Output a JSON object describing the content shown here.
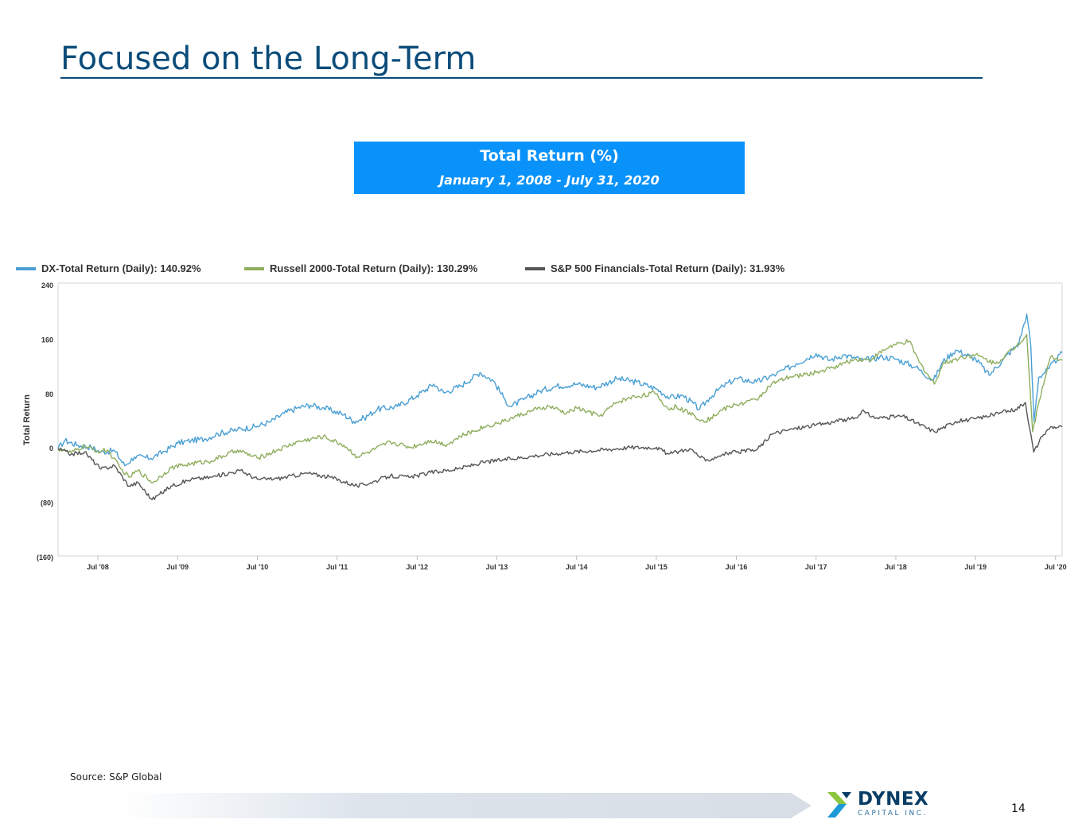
{
  "slide": {
    "title": "Focused on the Long-Term",
    "header_title": "Total Return (%)",
    "header_subtitle": "January 1, 2008 - July 31, 2020",
    "source": "Source: S&P Global",
    "page_number": "14",
    "logo_word": "DYNEX",
    "logo_sub": "CAPITAL INC."
  },
  "colors": {
    "title": "#0a4c7a",
    "header_bg": "#0a92fb",
    "dx": "#4a9fd4",
    "russell": "#8fae5e",
    "spfin": "#555555"
  },
  "chart_data": {
    "type": "line",
    "title": "",
    "xlabel": "",
    "ylabel": "Total Return",
    "xlim": [
      "2008-01-01",
      "2020-07-31"
    ],
    "ylim": [
      -160,
      240
    ],
    "y_ticks": [
      {
        "value": 240,
        "label": "240"
      },
      {
        "value": 160,
        "label": "160"
      },
      {
        "value": 80,
        "label": "80"
      },
      {
        "value": 0,
        "label": "0"
      },
      {
        "value": -80,
        "label": "(80)"
      },
      {
        "value": -160,
        "label": "(160)"
      }
    ],
    "x_ticks": [
      {
        "date": "2008-07-01",
        "label": "Jul '08"
      },
      {
        "date": "2009-07-01",
        "label": "Jul '09"
      },
      {
        "date": "2010-07-01",
        "label": "Jul '10"
      },
      {
        "date": "2011-07-01",
        "label": "Jul '11"
      },
      {
        "date": "2012-07-01",
        "label": "Jul '12"
      },
      {
        "date": "2013-07-01",
        "label": "Jul '13"
      },
      {
        "date": "2014-07-01",
        "label": "Jul '14"
      },
      {
        "date": "2015-07-01",
        "label": "Jul '15"
      },
      {
        "date": "2016-07-01",
        "label": "Jul '16"
      },
      {
        "date": "2017-07-01",
        "label": "Jul '17"
      },
      {
        "date": "2018-07-01",
        "label": "Jul '18"
      },
      {
        "date": "2019-07-01",
        "label": "Jul '19"
      },
      {
        "date": "2020-07-01",
        "label": "Jul '20"
      }
    ],
    "grid": false,
    "legend_position": "top-left",
    "series": [
      {
        "name": "DX-Total Return (Daily): 140.92%",
        "color": "#4a9fd4",
        "points": [
          [
            "2008-01-01",
            0
          ],
          [
            "2008-02-01",
            12
          ],
          [
            "2008-04-01",
            5
          ],
          [
            "2008-06-01",
            2
          ],
          [
            "2008-07-15",
            -5
          ],
          [
            "2008-09-15",
            -3
          ],
          [
            "2008-11-01",
            -25
          ],
          [
            "2008-12-15",
            -12
          ],
          [
            "2009-03-01",
            -14
          ],
          [
            "2009-05-01",
            -4
          ],
          [
            "2009-07-01",
            8
          ],
          [
            "2009-09-01",
            12
          ],
          [
            "2009-11-01",
            14
          ],
          [
            "2010-01-01",
            22
          ],
          [
            "2010-04-01",
            28
          ],
          [
            "2010-07-01",
            33
          ],
          [
            "2010-09-01",
            40
          ],
          [
            "2010-11-01",
            52
          ],
          [
            "2011-01-01",
            60
          ],
          [
            "2011-03-01",
            64
          ],
          [
            "2011-05-01",
            60
          ],
          [
            "2011-08-01",
            50
          ],
          [
            "2011-09-15",
            40
          ],
          [
            "2011-11-01",
            45
          ],
          [
            "2012-01-01",
            58
          ],
          [
            "2012-04-01",
            62
          ],
          [
            "2012-07-01",
            78
          ],
          [
            "2012-09-15",
            95
          ],
          [
            "2012-11-01",
            82
          ],
          [
            "2013-01-15",
            92
          ],
          [
            "2013-04-15",
            112
          ],
          [
            "2013-06-15",
            100
          ],
          [
            "2013-08-01",
            75
          ],
          [
            "2013-09-01",
            62
          ],
          [
            "2013-11-01",
            72
          ],
          [
            "2014-01-15",
            85
          ],
          [
            "2014-04-01",
            92
          ],
          [
            "2014-07-01",
            95
          ],
          [
            "2014-10-01",
            90
          ],
          [
            "2015-01-01",
            103
          ],
          [
            "2015-04-01",
            98
          ],
          [
            "2015-07-01",
            88
          ],
          [
            "2015-09-01",
            75
          ],
          [
            "2015-11-01",
            78
          ],
          [
            "2016-01-15",
            58
          ],
          [
            "2016-03-01",
            75
          ],
          [
            "2016-05-01",
            92
          ],
          [
            "2016-07-01",
            103
          ],
          [
            "2016-10-01",
            98
          ],
          [
            "2017-01-01",
            110
          ],
          [
            "2017-04-01",
            125
          ],
          [
            "2017-07-01",
            140
          ],
          [
            "2017-09-01",
            130
          ],
          [
            "2017-11-01",
            138
          ],
          [
            "2018-02-01",
            130
          ],
          [
            "2018-05-01",
            135
          ],
          [
            "2018-07-01",
            132
          ],
          [
            "2018-10-01",
            120
          ],
          [
            "2018-12-20",
            100
          ],
          [
            "2019-02-01",
            128
          ],
          [
            "2019-04-01",
            145
          ],
          [
            "2019-07-01",
            132
          ],
          [
            "2019-09-01",
            108
          ],
          [
            "2019-11-01",
            130
          ],
          [
            "2020-01-15",
            155
          ],
          [
            "2020-02-20",
            198
          ],
          [
            "2020-03-10",
            150
          ],
          [
            "2020-03-24",
            40
          ],
          [
            "2020-04-15",
            105
          ],
          [
            "2020-06-01",
            118
          ],
          [
            "2020-07-31",
            141
          ]
        ]
      },
      {
        "name": "Russell 2000-Total Return (Daily): 130.29%",
        "color": "#8fae5e",
        "points": [
          [
            "2008-01-01",
            0
          ],
          [
            "2008-03-01",
            -6
          ],
          [
            "2008-05-01",
            4
          ],
          [
            "2008-07-01",
            -4
          ],
          [
            "2008-08-15",
            -2
          ],
          [
            "2008-10-15",
            -30
          ],
          [
            "2008-11-20",
            -42
          ],
          [
            "2009-01-01",
            -32
          ],
          [
            "2009-03-09",
            -50
          ],
          [
            "2009-06-01",
            -28
          ],
          [
            "2009-09-01",
            -22
          ],
          [
            "2009-12-01",
            -18
          ],
          [
            "2010-04-01",
            -2
          ],
          [
            "2010-07-01",
            -14
          ],
          [
            "2010-10-01",
            -2
          ],
          [
            "2011-01-01",
            10
          ],
          [
            "2011-04-29",
            18
          ],
          [
            "2011-08-01",
            5
          ],
          [
            "2011-10-01",
            -12
          ],
          [
            "2011-12-01",
            -4
          ],
          [
            "2012-03-01",
            10
          ],
          [
            "2012-06-01",
            2
          ],
          [
            "2012-09-01",
            12
          ],
          [
            "2012-11-15",
            6
          ],
          [
            "2013-01-15",
            18
          ],
          [
            "2013-05-01",
            32
          ],
          [
            "2013-08-01",
            40
          ],
          [
            "2013-10-01",
            48
          ],
          [
            "2013-12-31",
            58
          ],
          [
            "2014-03-01",
            62
          ],
          [
            "2014-05-15",
            52
          ],
          [
            "2014-07-01",
            60
          ],
          [
            "2014-10-15",
            48
          ],
          [
            "2014-12-31",
            68
          ],
          [
            "2015-03-01",
            75
          ],
          [
            "2015-06-23",
            82
          ],
          [
            "2015-08-25",
            58
          ],
          [
            "2015-10-01",
            62
          ],
          [
            "2016-02-11",
            40
          ],
          [
            "2016-05-01",
            58
          ],
          [
            "2016-07-01",
            65
          ],
          [
            "2016-10-01",
            72
          ],
          [
            "2016-12-09",
            95
          ],
          [
            "2017-03-01",
            105
          ],
          [
            "2017-07-01",
            112
          ],
          [
            "2017-09-01",
            118
          ],
          [
            "2017-12-31",
            132
          ],
          [
            "2018-03-01",
            130
          ],
          [
            "2018-06-01",
            150
          ],
          [
            "2018-08-31",
            158
          ],
          [
            "2018-10-15",
            128
          ],
          [
            "2018-12-24",
            95
          ],
          [
            "2019-02-01",
            125
          ],
          [
            "2019-05-01",
            135
          ],
          [
            "2019-07-01",
            138
          ],
          [
            "2019-10-01",
            125
          ],
          [
            "2019-12-31",
            150
          ],
          [
            "2020-02-20",
            168
          ],
          [
            "2020-03-18",
            25
          ],
          [
            "2020-05-01",
            90
          ],
          [
            "2020-06-08",
            135
          ],
          [
            "2020-07-31",
            130
          ]
        ]
      },
      {
        "name": "S&P 500 Financials-Total Return (Daily): 31.93%",
        "color": "#555555",
        "points": [
          [
            "2008-01-01",
            0
          ],
          [
            "2008-03-01",
            -8
          ],
          [
            "2008-05-01",
            -5
          ],
          [
            "2008-07-15",
            -30
          ],
          [
            "2008-09-15",
            -25
          ],
          [
            "2008-11-20",
            -55
          ],
          [
            "2009-01-01",
            -50
          ],
          [
            "2009-03-06",
            -75
          ],
          [
            "2009-06-01",
            -55
          ],
          [
            "2009-09-01",
            -45
          ],
          [
            "2009-12-01",
            -42
          ],
          [
            "2010-04-15",
            -32
          ],
          [
            "2010-07-01",
            -45
          ],
          [
            "2010-10-01",
            -44
          ],
          [
            "2011-02-15",
            -36
          ],
          [
            "2011-06-01",
            -42
          ],
          [
            "2011-10-01",
            -55
          ],
          [
            "2011-12-01",
            -50
          ],
          [
            "2012-03-01",
            -40
          ],
          [
            "2012-06-01",
            -42
          ],
          [
            "2012-09-01",
            -35
          ],
          [
            "2012-12-31",
            -30
          ],
          [
            "2013-05-01",
            -20
          ],
          [
            "2013-09-01",
            -15
          ],
          [
            "2013-12-31",
            -10
          ],
          [
            "2014-06-01",
            -5
          ],
          [
            "2014-12-31",
            0
          ],
          [
            "2015-03-01",
            2
          ],
          [
            "2015-07-01",
            2
          ],
          [
            "2015-08-25",
            -8
          ],
          [
            "2015-12-01",
            0
          ],
          [
            "2016-02-11",
            -18
          ],
          [
            "2016-05-01",
            -8
          ],
          [
            "2016-07-01",
            -5
          ],
          [
            "2016-10-01",
            -2
          ],
          [
            "2016-12-15",
            22
          ],
          [
            "2017-03-01",
            28
          ],
          [
            "2017-07-01",
            35
          ],
          [
            "2017-12-31",
            45
          ],
          [
            "2018-01-26",
            55
          ],
          [
            "2018-04-01",
            45
          ],
          [
            "2018-08-01",
            48
          ],
          [
            "2018-12-24",
            25
          ],
          [
            "2019-04-01",
            40
          ],
          [
            "2019-07-01",
            44
          ],
          [
            "2019-12-31",
            58
          ],
          [
            "2020-02-14",
            68
          ],
          [
            "2020-03-23",
            -5
          ],
          [
            "2020-05-01",
            18
          ],
          [
            "2020-06-08",
            32
          ],
          [
            "2020-07-31",
            32
          ]
        ]
      }
    ]
  }
}
